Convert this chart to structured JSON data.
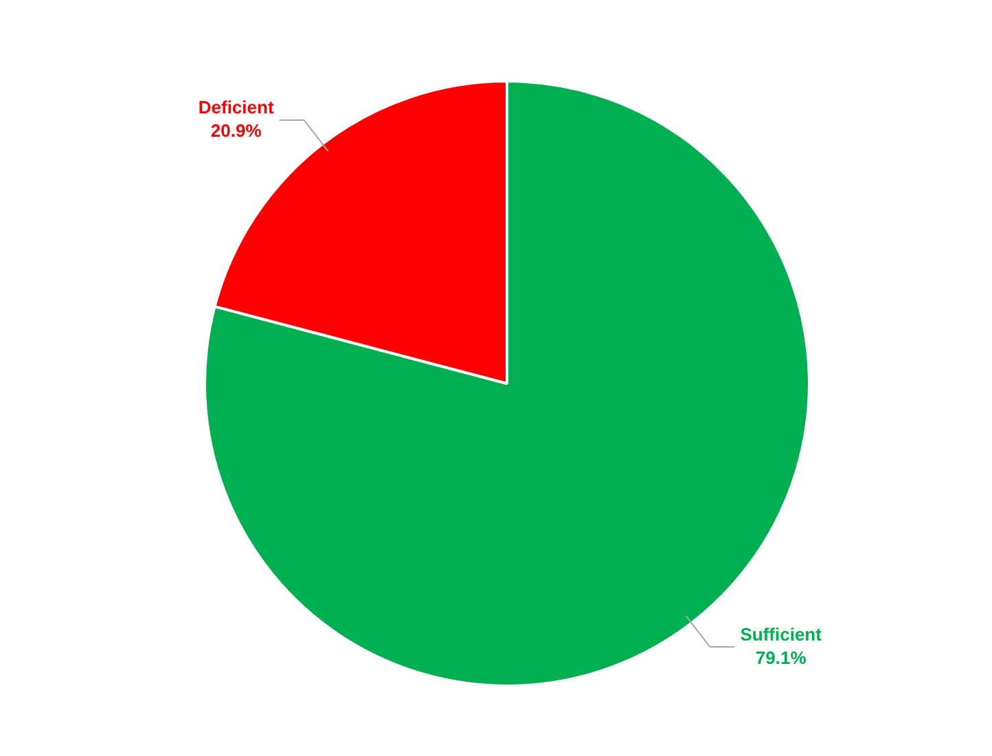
{
  "chart_data": {
    "type": "pie",
    "categories": [
      "Sufficient",
      "Deficient"
    ],
    "values": [
      79.1,
      20.9
    ],
    "colors": [
      "#00b050",
      "#ff0000"
    ],
    "value_labels": [
      "79.1%",
      "20.9%"
    ],
    "legend": false
  }
}
